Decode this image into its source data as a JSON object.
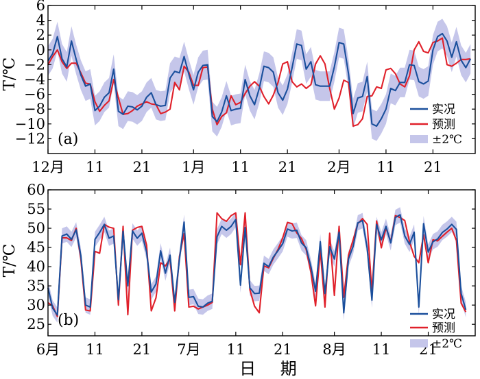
{
  "xlabel": "日 期",
  "colors": {
    "observed": "#1a4f9c",
    "forecast": "#e0202a",
    "band": "#c5c6ea"
  },
  "chart_data": [
    {
      "type": "line",
      "panel_label": "(a)",
      "ylabel": "T/℃",
      "ylim": [
        -14,
        6
      ],
      "yticks": [
        6,
        4,
        2,
        0,
        -2,
        -4,
        -6,
        -8,
        -10,
        -12
      ],
      "xlim": [
        1,
        92
      ],
      "xticks": [
        {
          "pos": 1,
          "label": "12月"
        },
        {
          "pos": 11,
          "label": "11"
        },
        {
          "pos": 21,
          "label": "21"
        },
        {
          "pos": 32,
          "label": "1月"
        },
        {
          "pos": 42,
          "label": "11"
        },
        {
          "pos": 52,
          "label": "21"
        },
        {
          "pos": 63,
          "label": "2月"
        },
        {
          "pos": 73,
          "label": "11"
        },
        {
          "pos": 83,
          "label": "21"
        }
      ],
      "legend": {
        "position": "lower-right",
        "entries": [
          "实况",
          "预测",
          "±2℃"
        ]
      },
      "band_halfwidth": 2,
      "series": [
        {
          "name": "实况",
          "values": [
            -1.5,
            -0.5,
            1.8,
            -1.2,
            -2.3,
            1.2,
            -1.3,
            -3.4,
            -4.9,
            -4.6,
            -8.2,
            -7.6,
            -6.4,
            -5.8,
            -2.6,
            -8.3,
            -8.7,
            -7.6,
            -7.7,
            -8.1,
            -7.6,
            -6.4,
            -5.8,
            -7.4,
            -7.6,
            -7.5,
            -3.8,
            -2.9,
            -3.1,
            -0.9,
            -3.3,
            -5.4,
            -3.0,
            -2.1,
            -2.0,
            -9.0,
            -9.7,
            -8.4,
            -6.2,
            -8.2,
            -8.0,
            -7.9,
            -4.0,
            -6.2,
            -7.4,
            -5.2,
            -2.2,
            -2.4,
            -3.0,
            -5.8,
            -6.8,
            -5.3,
            -2.4,
            0.8,
            0.6,
            -2.6,
            -1.6,
            -4.7,
            -4.9,
            -4.9,
            -4.9,
            -2.3,
            1.0,
            0.8,
            -3.2,
            -8.6,
            -6.5,
            -6.3,
            -3.6,
            -10.0,
            -10.3,
            -9.3,
            -8.0,
            -5.2,
            -5.5,
            -4.4,
            -4.4,
            -2.0,
            -2.1,
            -4.3,
            -4.6,
            -4.2,
            0.0,
            1.8,
            2.2,
            1.2,
            -1.0,
            1.1,
            -1.4,
            -2.4,
            -1.2
          ]
        },
        {
          "name": "预测",
          "values": [
            -2.0,
            -0.9,
            0.0,
            -1.6,
            -2.5,
            -1.8,
            -1.8,
            -3.1,
            -4.5,
            -4.6,
            -7.0,
            -8.3,
            -7.5,
            -6.9,
            -4.0,
            -6.5,
            -8.7,
            -8.6,
            -8.2,
            -7.6,
            -7.3,
            -7.0,
            -7.3,
            -7.4,
            -8.6,
            -8.4,
            -8.0,
            -4.4,
            -5.4,
            -2.2,
            -3.0,
            -4.8,
            -4.8,
            -2.4,
            -2.3,
            -8.0,
            -10.1,
            -9.0,
            -8.5,
            -6.2,
            -7.4,
            -7.1,
            -5.9,
            -4.9,
            -4.3,
            -4.9,
            -6.3,
            -7.3,
            -6.1,
            -4.4,
            -1.9,
            -1.6,
            -4.3,
            -5.0,
            -4.6,
            -5.2,
            -4.7,
            -1.9,
            -0.8,
            -1.9,
            -5.2,
            -8.0,
            -6.5,
            -4.1,
            -4.4,
            -10.3,
            -10.1,
            -9.3,
            -6.3,
            -6.2,
            -5.0,
            -5.2,
            -2.7,
            -2.5,
            -3.2,
            -4.6,
            -5.0,
            -3.5,
            0.0,
            1.1,
            -0.2,
            -0.4,
            1.0,
            1.2,
            1.6,
            -2.0,
            -2.2,
            -1.8,
            -1.3,
            -1.3,
            -1.2
          ]
        }
      ]
    },
    {
      "type": "line",
      "panel_label": "(b)",
      "ylabel": "T/℃",
      "ylim": [
        22,
        60
      ],
      "yticks": [
        60,
        55,
        50,
        45,
        40,
        35,
        30,
        25
      ],
      "xlim": [
        1,
        92
      ],
      "xticks": [
        {
          "pos": 1,
          "label": "6月"
        },
        {
          "pos": 11,
          "label": "11"
        },
        {
          "pos": 21,
          "label": "21"
        },
        {
          "pos": 31,
          "label": "7月"
        },
        {
          "pos": 41,
          "label": "11"
        },
        {
          "pos": 51,
          "label": "21"
        },
        {
          "pos": 62,
          "label": "8月"
        },
        {
          "pos": 72,
          "label": "11"
        },
        {
          "pos": 82,
          "label": "21"
        }
      ],
      "legend": {
        "position": "lower-right",
        "entries": [
          "实况",
          "预测",
          "±2℃"
        ]
      },
      "band_halfwidth": 2,
      "series": [
        {
          "name": "实况",
          "values": [
            34.5,
            29.2,
            27.4,
            48.0,
            48.5,
            47.1,
            49.6,
            42.9,
            30.0,
            29.5,
            47.1,
            48.9,
            51.0,
            47.4,
            48.0,
            31.4,
            49.2,
            35.0,
            49.3,
            47.4,
            48.7,
            43.8,
            33.4,
            35.5,
            44.1,
            38.3,
            43.0,
            30.7,
            42.0,
            51.6,
            32.0,
            32.2,
            29.7,
            29.5,
            30.5,
            31.0,
            47.8,
            50.5,
            49.5,
            50.5,
            52.3,
            35.2,
            50.2,
            34.5,
            33.0,
            33.1,
            40.9,
            40.0,
            42.5,
            44.2,
            46.0,
            49.8,
            49.3,
            49.5,
            46.2,
            44.9,
            40.0,
            33.6,
            46.5,
            33.0,
            45.2,
            42.0,
            49.0,
            28.0,
            42.0,
            45.3,
            51.4,
            52.0,
            44.8,
            31.3,
            51.0,
            47.0,
            50.5,
            46.2,
            52.8,
            53.5,
            48.0,
            45.8,
            49.0,
            29.5,
            51.2,
            43.8,
            46.5,
            47.2,
            48.9,
            49.8,
            51.0,
            49.7,
            33.0,
            28.8
          ]
        },
        {
          "name": "预测",
          "values": [
            30.6,
            29.8,
            27.0,
            47.5,
            47.5,
            46.8,
            50.0,
            42.0,
            28.7,
            28.5,
            44.0,
            43.5,
            51.0,
            50.3,
            50.0,
            30.0,
            50.5,
            27.5,
            49.5,
            50.2,
            50.5,
            45.6,
            28.5,
            31.9,
            41.0,
            40.2,
            42.0,
            28.5,
            42.7,
            48.6,
            29.5,
            29.7,
            29.0,
            29.5,
            30.0,
            30.7,
            54.0,
            52.5,
            51.8,
            53.3,
            54.0,
            40.5,
            54.0,
            34.0,
            29.7,
            28.0,
            40.2,
            39.7,
            42.2,
            44.5,
            47.5,
            51.5,
            51.2,
            48.8,
            47.3,
            44.5,
            38.5,
            29.8,
            44.2,
            29.5,
            48.7,
            32.5,
            50.5,
            32.0,
            43.0,
            47.0,
            51.2,
            52.5,
            51.0,
            33.5,
            51.9,
            44.9,
            50.1,
            46.5,
            53.3,
            52.8,
            52.0,
            46.5,
            42.7,
            41.0,
            48.3,
            41.0,
            47.0,
            46.7,
            47.9,
            49.0,
            50.0,
            46.8,
            30.5,
            28.2
          ]
        }
      ]
    }
  ]
}
